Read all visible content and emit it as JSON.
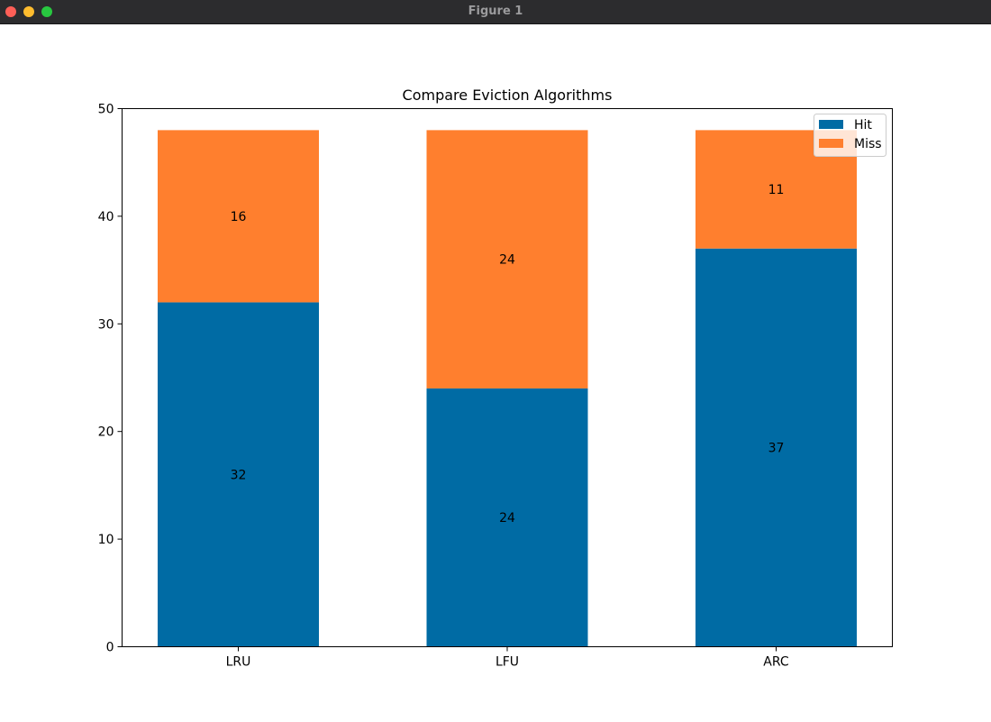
{
  "window": {
    "title": "Figure 1"
  },
  "colors": {
    "hit": "#006ba4",
    "miss": "#ff7f2e"
  },
  "chart_data": {
    "type": "bar",
    "stacked": true,
    "title": "Compare Eviction Algorithms",
    "xlabel": "",
    "ylabel": "",
    "categories": [
      "LRU",
      "LFU",
      "ARC"
    ],
    "series": [
      {
        "name": "Hit",
        "values": [
          32,
          24,
          37
        ]
      },
      {
        "name": "Miss",
        "values": [
          16,
          24,
          11
        ]
      }
    ],
    "ylim": [
      0,
      50
    ],
    "yticks": [
      0,
      10,
      20,
      30,
      40,
      50
    ],
    "grid": false,
    "legend": "top-right"
  }
}
